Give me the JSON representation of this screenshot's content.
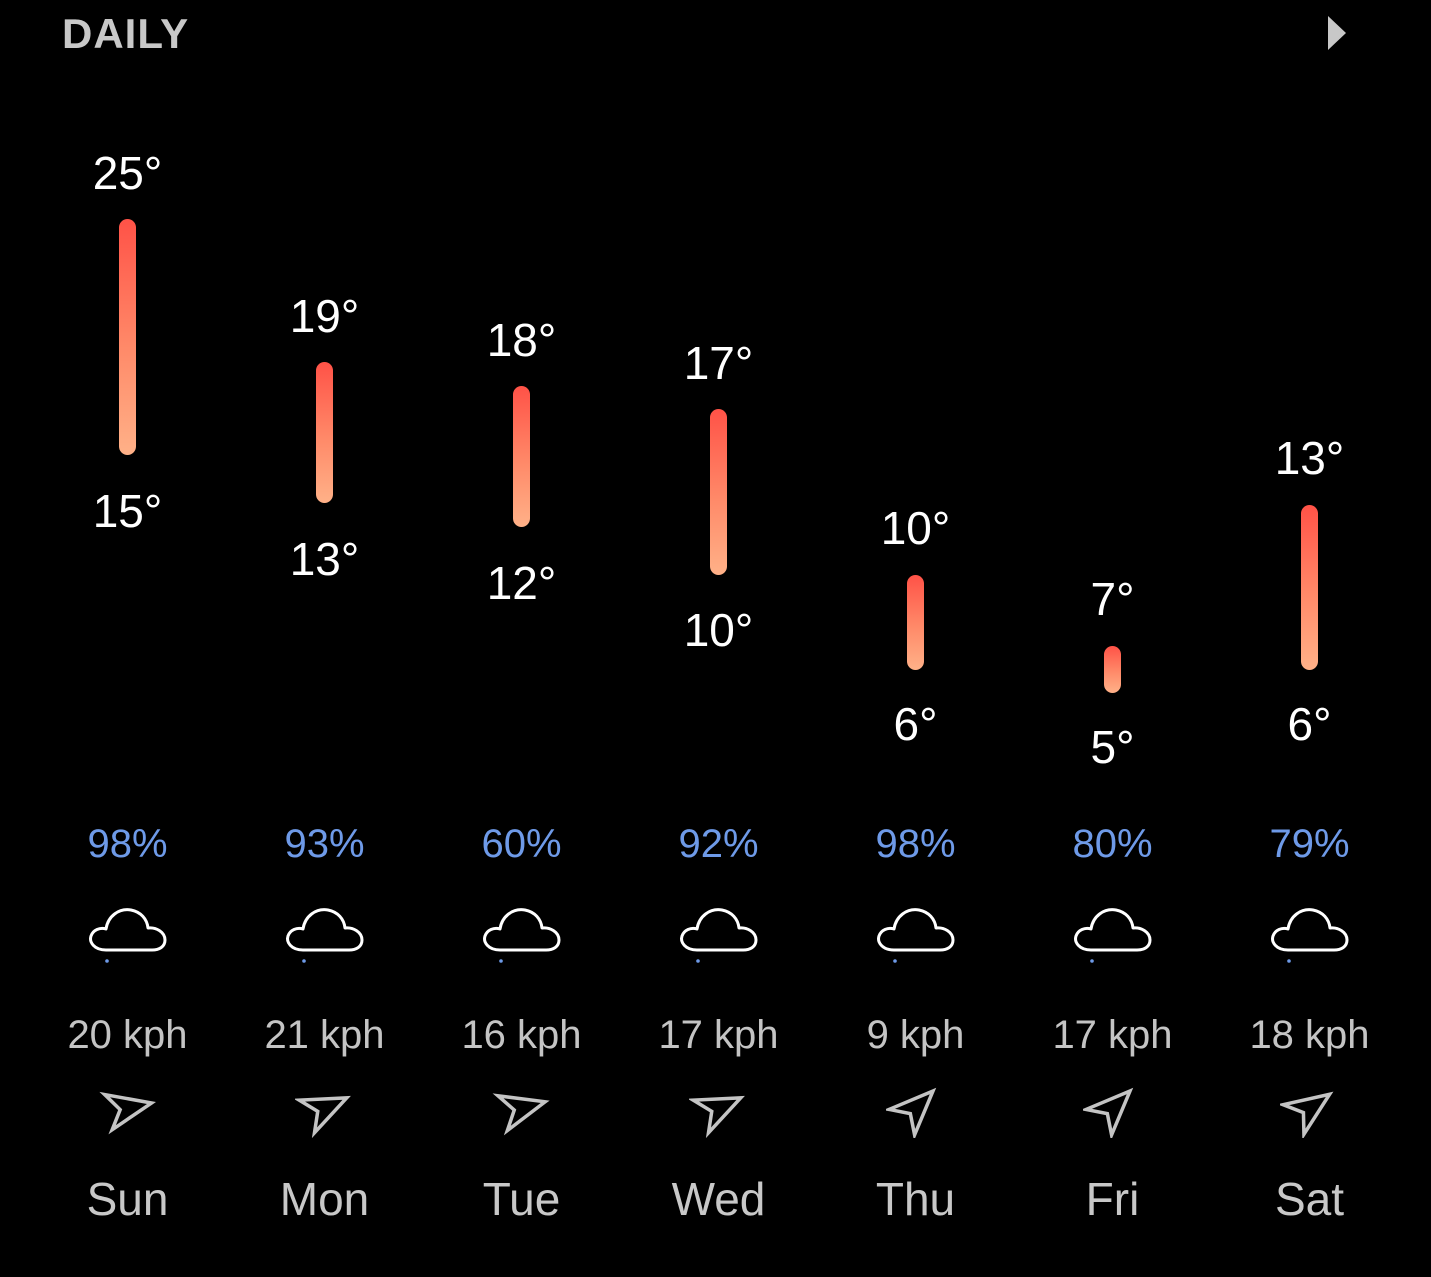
{
  "header": {
    "title": "DAILY",
    "next_icon": "chevron-right-icon"
  },
  "theme": {
    "background": "#000000",
    "bar_top_color": "#ff5247",
    "bar_bottom_color": "#ffb188",
    "precip_color": "#6e9ae8",
    "label_color": "#c8c8c8"
  },
  "days": [
    {
      "day": "Sun",
      "high": "25°",
      "low": "15°",
      "precip": "98%",
      "wind": "20 kph",
      "icon": "cloud-drizzle-icon",
      "wind_icon": "wind-direction-arrow-icon"
    },
    {
      "day": "Mon",
      "high": "19°",
      "low": "13°",
      "precip": "93%",
      "wind": "21 kph",
      "icon": "cloud-drizzle-icon",
      "wind_icon": "wind-direction-arrow-icon"
    },
    {
      "day": "Tue",
      "high": "18°",
      "low": "12°",
      "precip": "60%",
      "wind": "16 kph",
      "icon": "cloud-drizzle-icon",
      "wind_icon": "wind-direction-arrow-icon"
    },
    {
      "day": "Wed",
      "high": "17°",
      "low": "10°",
      "precip": "92%",
      "wind": "17 kph",
      "icon": "cloud-drizzle-icon",
      "wind_icon": "wind-direction-arrow-icon"
    },
    {
      "day": "Thu",
      "high": "10°",
      "low": "6°",
      "precip": "98%",
      "wind": "9 kph",
      "icon": "cloud-drizzle-icon",
      "wind_icon": "wind-direction-arrow-icon"
    },
    {
      "day": "Fri",
      "high": "7°",
      "low": "5°",
      "precip": "80%",
      "wind": "17 kph",
      "icon": "cloud-drizzle-icon",
      "wind_icon": "wind-direction-arrow-icon"
    },
    {
      "day": "Sat",
      "high": "13°",
      "low": "6°",
      "precip": "79%",
      "wind": "18 kph",
      "icon": "cloud-drizzle-icon",
      "wind_icon": "wind-direction-arrow-icon"
    }
  ]
}
